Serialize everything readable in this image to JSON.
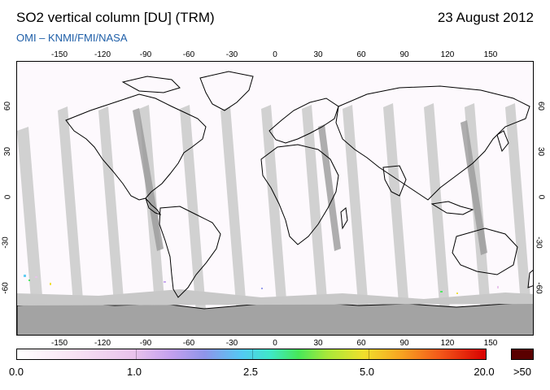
{
  "header": {
    "title": "SO2 vertical column [DU] (TRM)",
    "date": "23 August 2012",
    "credit": "OMI  –  KNMI/FMI/NASA"
  },
  "map": {
    "lon_labels": [
      "-150",
      "-120",
      "-90",
      "-60",
      "-30",
      "0",
      "30",
      "60",
      "90",
      "120",
      "150"
    ],
    "lat_labels": [
      "60",
      "30",
      "0",
      "-30",
      "-60"
    ],
    "colors": {
      "land_outline": "#000000",
      "swath_gap": "#c8c8c8",
      "antarctica": "#a3a3a3",
      "background": "#ffffff"
    }
  },
  "colorbar": {
    "labels": [
      "0.0",
      "1.0",
      "2.5",
      "5.0",
      "20.0"
    ],
    "overflow_label": ">50",
    "overflow_color": "#5a0000"
  }
}
